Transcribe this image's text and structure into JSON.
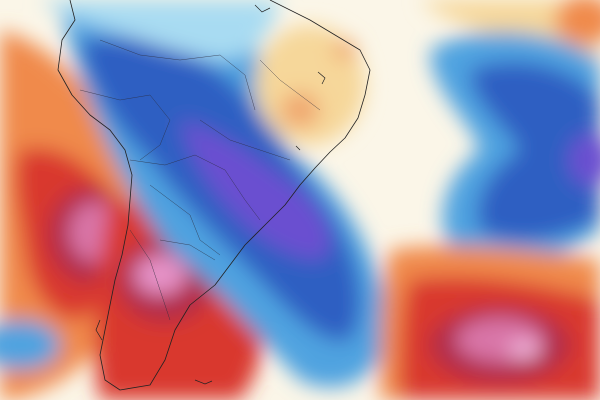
{
  "map": {
    "kind": "temperature-anomaly",
    "region": "South America",
    "text_labels": [],
    "palette": {
      "very_cold": "#6a4fd0",
      "cold": "#2d5fc2",
      "cool": "#4fa3e0",
      "mild_cool": "#a8dbf2",
      "neutral": "#fbf6e8",
      "mild_warm": "#f6d79a",
      "warm": "#f08a4b",
      "hot": "#d9382e",
      "very_hot": "#b02a4a",
      "extreme_hot": "#e693c8"
    }
  }
}
